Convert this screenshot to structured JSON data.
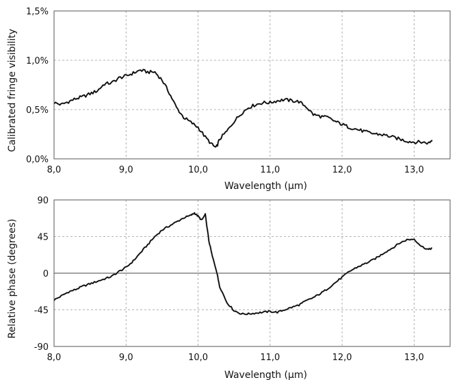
{
  "chart_data": [
    {
      "type": "line",
      "xlabel": "Wavelength (µm)",
      "ylabel": "Calibrated fringe visibility",
      "xlim": [
        8.0,
        13.5
      ],
      "ylim": [
        0.0,
        1.5
      ],
      "x_ticks": [
        8.0,
        9.0,
        10.0,
        11.0,
        12.0,
        13.0
      ],
      "x_tick_labels": [
        "8,0",
        "9,0",
        "10,0",
        "11,0",
        "12,0",
        "13,0"
      ],
      "y_ticks": [
        0.0,
        0.5,
        1.0,
        1.5
      ],
      "y_tick_labels": [
        "0,0%",
        "0,5%",
        "1,0%",
        "1,5%"
      ],
      "grid": true,
      "series": [
        {
          "x": [
            8.0,
            8.1,
            8.2,
            8.3,
            8.4,
            8.5,
            8.6,
            8.7,
            8.8,
            8.9,
            9.0,
            9.1,
            9.2,
            9.3,
            9.4,
            9.5,
            9.6,
            9.7,
            9.8,
            9.9,
            10.0,
            10.1,
            10.2,
            10.25,
            10.3,
            10.4,
            10.5,
            10.6,
            10.7,
            10.8,
            10.9,
            11.0,
            11.1,
            11.2,
            11.3,
            11.4,
            11.5,
            11.6,
            11.7,
            11.8,
            11.9,
            12.0,
            12.1,
            12.2,
            12.3,
            12.4,
            12.5,
            12.6,
            12.7,
            12.8,
            12.9,
            13.0,
            13.1,
            13.2,
            13.25
          ],
          "values": [
            0.57,
            0.55,
            0.58,
            0.61,
            0.63,
            0.66,
            0.69,
            0.76,
            0.77,
            0.82,
            0.84,
            0.87,
            0.9,
            0.88,
            0.88,
            0.8,
            0.67,
            0.52,
            0.42,
            0.37,
            0.32,
            0.22,
            0.14,
            0.11,
            0.2,
            0.28,
            0.38,
            0.46,
            0.52,
            0.55,
            0.57,
            0.57,
            0.59,
            0.6,
            0.59,
            0.58,
            0.53,
            0.45,
            0.43,
            0.42,
            0.38,
            0.35,
            0.32,
            0.3,
            0.28,
            0.26,
            0.25,
            0.24,
            0.22,
            0.2,
            0.18,
            0.17,
            0.17,
            0.16,
            0.19
          ]
        }
      ]
    },
    {
      "type": "line",
      "xlabel": "Wavelength (µm)",
      "ylabel": "Relative phase (degrees)",
      "xlim": [
        8.0,
        13.5
      ],
      "ylim": [
        -90,
        90
      ],
      "x_ticks": [
        8.0,
        9.0,
        10.0,
        11.0,
        12.0,
        13.0
      ],
      "x_tick_labels": [
        "8,0",
        "9,0",
        "10,0",
        "11,0",
        "12,0",
        "13,0"
      ],
      "y_ticks": [
        -90,
        -45,
        0,
        45,
        90
      ],
      "y_tick_labels": [
        "-90",
        "-45",
        "0",
        "45",
        "90"
      ],
      "grid": true,
      "series": [
        {
          "x": [
            8.0,
            8.1,
            8.2,
            8.3,
            8.4,
            8.5,
            8.6,
            8.7,
            8.8,
            8.9,
            9.0,
            9.1,
            9.2,
            9.3,
            9.4,
            9.5,
            9.6,
            9.7,
            9.8,
            9.9,
            9.95,
            10.0,
            10.05,
            10.1,
            10.15,
            10.2,
            10.25,
            10.3,
            10.4,
            10.5,
            10.6,
            10.7,
            10.8,
            10.9,
            11.0,
            11.1,
            11.2,
            11.3,
            11.4,
            11.5,
            11.6,
            11.7,
            11.8,
            11.9,
            12.0,
            12.1,
            12.2,
            12.3,
            12.4,
            12.5,
            12.6,
            12.7,
            12.8,
            12.9,
            13.0,
            13.1,
            13.2,
            13.25
          ],
          "values": [
            -33,
            -28,
            -23,
            -20,
            -16,
            -13,
            -10,
            -7,
            -4,
            2,
            7,
            15,
            25,
            35,
            45,
            53,
            58,
            63,
            68,
            71,
            74,
            70,
            65,
            72,
            40,
            20,
            5,
            -16,
            -36,
            -46,
            -50,
            -50,
            -49,
            -48,
            -47,
            -48,
            -45,
            -42,
            -39,
            -34,
            -30,
            -25,
            -19,
            -12,
            -5,
            2,
            7,
            11,
            15,
            20,
            26,
            31,
            37,
            41,
            42,
            33,
            29,
            31
          ]
        }
      ]
    }
  ]
}
